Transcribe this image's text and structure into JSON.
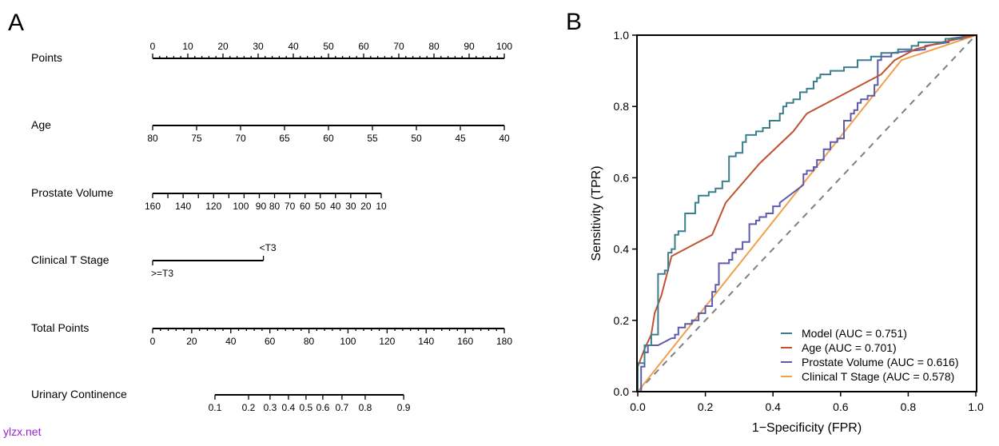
{
  "panels": {
    "a_letter": "A",
    "b_letter": "B"
  },
  "watermark": "ylzx.net",
  "chart_data": [
    {
      "type": "nomogram",
      "title": "",
      "rows": [
        {
          "label": "Points",
          "kind": "linear",
          "min": 0,
          "max": 100,
          "major_ticks": [
            0,
            10,
            20,
            30,
            40,
            50,
            60,
            70,
            80,
            90,
            100
          ],
          "minor_step": 2,
          "labels_above": true
        },
        {
          "label": "Age",
          "kind": "linear",
          "from": 80,
          "to": 40,
          "major_ticks": [
            80,
            75,
            70,
            65,
            60,
            55,
            50,
            45,
            40
          ]
        },
        {
          "label": "Prostate Volume",
          "kind": "linear",
          "from": 160,
          "to": 10,
          "points_range": [
            0,
            65
          ],
          "major_ticks": [
            160,
            150,
            140,
            130,
            120,
            110,
            100,
            90,
            80,
            70,
            60,
            50,
            40,
            30,
            20,
            10
          ],
          "tick_labels": [
            "160",
            "",
            "140",
            "",
            "120",
            "",
            "100",
            "90",
            "80",
            "70",
            "60",
            "50",
            "40",
            "30",
            "20",
            "10"
          ]
        },
        {
          "label": "Clinical T Stage",
          "kind": "categorical",
          "categories": [
            {
              "name": ">=T3",
              "points": 0
            },
            {
              "name": "<T3",
              "points": 31.5
            }
          ]
        },
        {
          "label": "Total Points",
          "kind": "linear",
          "min": 0,
          "max": 180,
          "major_ticks": [
            0,
            20,
            40,
            60,
            80,
            100,
            120,
            140,
            160,
            180
          ],
          "minor_step": 4
        },
        {
          "label": "Urinary Continence",
          "kind": "probability",
          "ticks": [
            {
              "label": "0.1",
              "total_points": 31.9
            },
            {
              "label": "0.2",
              "total_points": 49.1
            },
            {
              "label": "0.3",
              "total_points": 60.1
            },
            {
              "label": "0.4",
              "total_points": 69.5
            },
            {
              "label": "0.5",
              "total_points": 78.5
            },
            {
              "label": "0.6",
              "total_points": 87.1
            },
            {
              "label": "0.7",
              "total_points": 96.9
            },
            {
              "label": "0.8",
              "total_points": 108.8
            },
            {
              "label": "0.9",
              "total_points": 128.5
            }
          ]
        }
      ]
    },
    {
      "type": "line",
      "title": "",
      "xlabel": "1−Specificity (FPR)",
      "ylabel": "Sensitivity (TPR)",
      "xlim": [
        0,
        1
      ],
      "ylim": [
        0,
        1
      ],
      "xticks": [
        "0.0",
        "0.2",
        "0.4",
        "0.6",
        "0.8",
        "1.0"
      ],
      "yticks": [
        "0.0",
        "0.2",
        "0.4",
        "0.6",
        "0.8",
        "1.0"
      ],
      "grid": false,
      "legend_position": "bottom-right",
      "diagonal": {
        "style": "dashed",
        "color": "#7f7f7f"
      },
      "series": [
        {
          "name": "Model (AUC = 0.751)",
          "color": "#3a7e8e",
          "step": true,
          "points": [
            [
              0,
              0
            ],
            [
              0,
              0.08
            ],
            [
              0.02,
              0.08
            ],
            [
              0.02,
              0.13
            ],
            [
              0.04,
              0.13
            ],
            [
              0.04,
              0.16
            ],
            [
              0.06,
              0.16
            ],
            [
              0.06,
              0.33
            ],
            [
              0.08,
              0.33
            ],
            [
              0.08,
              0.34
            ],
            [
              0.09,
              0.34
            ],
            [
              0.09,
              0.39
            ],
            [
              0.1,
              0.39
            ],
            [
              0.1,
              0.4
            ],
            [
              0.11,
              0.4
            ],
            [
              0.11,
              0.44
            ],
            [
              0.12,
              0.44
            ],
            [
              0.12,
              0.45
            ],
            [
              0.14,
              0.45
            ],
            [
              0.14,
              0.5
            ],
            [
              0.17,
              0.5
            ],
            [
              0.17,
              0.53
            ],
            [
              0.18,
              0.53
            ],
            [
              0.18,
              0.55
            ],
            [
              0.21,
              0.55
            ],
            [
              0.21,
              0.56
            ],
            [
              0.23,
              0.56
            ],
            [
              0.23,
              0.57
            ],
            [
              0.25,
              0.57
            ],
            [
              0.25,
              0.59
            ],
            [
              0.27,
              0.59
            ],
            [
              0.27,
              0.66
            ],
            [
              0.29,
              0.66
            ],
            [
              0.29,
              0.67
            ],
            [
              0.31,
              0.67
            ],
            [
              0.31,
              0.7
            ],
            [
              0.32,
              0.7
            ],
            [
              0.32,
              0.72
            ],
            [
              0.35,
              0.72
            ],
            [
              0.35,
              0.73
            ],
            [
              0.37,
              0.73
            ],
            [
              0.37,
              0.74
            ],
            [
              0.39,
              0.74
            ],
            [
              0.39,
              0.76
            ],
            [
              0.42,
              0.76
            ],
            [
              0.42,
              0.78
            ],
            [
              0.43,
              0.78
            ],
            [
              0.43,
              0.8
            ],
            [
              0.44,
              0.8
            ],
            [
              0.44,
              0.81
            ],
            [
              0.46,
              0.81
            ],
            [
              0.46,
              0.82
            ],
            [
              0.48,
              0.82
            ],
            [
              0.48,
              0.84
            ],
            [
              0.5,
              0.84
            ],
            [
              0.5,
              0.85
            ],
            [
              0.52,
              0.85
            ],
            [
              0.52,
              0.87
            ],
            [
              0.53,
              0.87
            ],
            [
              0.53,
              0.88
            ],
            [
              0.54,
              0.88
            ],
            [
              0.54,
              0.89
            ],
            [
              0.57,
              0.89
            ],
            [
              0.57,
              0.9
            ],
            [
              0.61,
              0.9
            ],
            [
              0.61,
              0.91
            ],
            [
              0.65,
              0.91
            ],
            [
              0.65,
              0.93
            ],
            [
              0.69,
              0.93
            ],
            [
              0.69,
              0.94
            ],
            [
              0.72,
              0.94
            ],
            [
              0.72,
              0.95
            ],
            [
              0.77,
              0.95
            ],
            [
              0.77,
              0.96
            ],
            [
              0.81,
              0.96
            ],
            [
              0.81,
              0.97
            ],
            [
              0.83,
              0.97
            ],
            [
              0.83,
              0.98
            ],
            [
              0.91,
              0.98
            ],
            [
              0.91,
              0.99
            ],
            [
              0.96,
              0.99
            ],
            [
              0.96,
              1.0
            ],
            [
              1.0,
              1.0
            ]
          ]
        },
        {
          "name": "Age (AUC = 0.701)",
          "color": "#c0522f",
          "step": false,
          "points": [
            [
              0,
              0
            ],
            [
              0,
              0.07
            ],
            [
              0.02,
              0.12
            ],
            [
              0.04,
              0.16
            ],
            [
              0.05,
              0.22
            ],
            [
              0.07,
              0.27
            ],
            [
              0.1,
              0.38
            ],
            [
              0.22,
              0.44
            ],
            [
              0.26,
              0.53
            ],
            [
              0.36,
              0.64
            ],
            [
              0.46,
              0.73
            ],
            [
              0.5,
              0.78
            ],
            [
              0.56,
              0.81
            ],
            [
              0.62,
              0.84
            ],
            [
              0.68,
              0.87
            ],
            [
              0.72,
              0.89
            ],
            [
              0.76,
              0.93
            ],
            [
              0.82,
              0.96
            ],
            [
              0.9,
              0.98
            ],
            [
              1.0,
              1.0
            ]
          ]
        },
        {
          "name": "Prostate Volume (AUC = 0.616)",
          "color": "#5e5aad",
          "step": true,
          "points": [
            [
              0,
              0
            ],
            [
              0.01,
              0
            ],
            [
              0.01,
              0.07
            ],
            [
              0.02,
              0.07
            ],
            [
              0.02,
              0.11
            ],
            [
              0.03,
              0.11
            ],
            [
              0.03,
              0.13
            ],
            [
              0.06,
              0.13
            ],
            [
              0.08,
              0.14
            ],
            [
              0.1,
              0.15
            ],
            [
              0.11,
              0.15
            ],
            [
              0.11,
              0.16
            ],
            [
              0.12,
              0.16
            ],
            [
              0.12,
              0.18
            ],
            [
              0.14,
              0.18
            ],
            [
              0.14,
              0.19
            ],
            [
              0.16,
              0.19
            ],
            [
              0.16,
              0.2
            ],
            [
              0.18,
              0.2
            ],
            [
              0.18,
              0.22
            ],
            [
              0.2,
              0.22
            ],
            [
              0.2,
              0.24
            ],
            [
              0.22,
              0.24
            ],
            [
              0.22,
              0.28
            ],
            [
              0.23,
              0.28
            ],
            [
              0.23,
              0.3
            ],
            [
              0.24,
              0.3
            ],
            [
              0.24,
              0.36
            ],
            [
              0.27,
              0.36
            ],
            [
              0.27,
              0.37
            ],
            [
              0.28,
              0.37
            ],
            [
              0.28,
              0.39
            ],
            [
              0.29,
              0.39
            ],
            [
              0.29,
              0.4
            ],
            [
              0.31,
              0.4
            ],
            [
              0.31,
              0.42
            ],
            [
              0.33,
              0.42
            ],
            [
              0.33,
              0.47
            ],
            [
              0.35,
              0.47
            ],
            [
              0.35,
              0.48
            ],
            [
              0.36,
              0.48
            ],
            [
              0.36,
              0.49
            ],
            [
              0.38,
              0.49
            ],
            [
              0.38,
              0.5
            ],
            [
              0.4,
              0.5
            ],
            [
              0.4,
              0.52
            ],
            [
              0.42,
              0.52
            ],
            [
              0.42,
              0.53
            ],
            [
              0.49,
              0.58
            ],
            [
              0.49,
              0.61
            ],
            [
              0.5,
              0.61
            ],
            [
              0.5,
              0.62
            ],
            [
              0.52,
              0.62
            ],
            [
              0.52,
              0.63
            ],
            [
              0.53,
              0.63
            ],
            [
              0.53,
              0.65
            ],
            [
              0.55,
              0.65
            ],
            [
              0.55,
              0.68
            ],
            [
              0.57,
              0.68
            ],
            [
              0.57,
              0.7
            ],
            [
              0.59,
              0.7
            ],
            [
              0.59,
              0.71
            ],
            [
              0.61,
              0.71
            ],
            [
              0.61,
              0.76
            ],
            [
              0.63,
              0.76
            ],
            [
              0.63,
              0.78
            ],
            [
              0.64,
              0.78
            ],
            [
              0.64,
              0.79
            ],
            [
              0.65,
              0.79
            ],
            [
              0.65,
              0.81
            ],
            [
              0.66,
              0.81
            ],
            [
              0.66,
              0.82
            ],
            [
              0.68,
              0.82
            ],
            [
              0.68,
              0.83
            ],
            [
              0.7,
              0.83
            ],
            [
              0.7,
              0.86
            ],
            [
              0.71,
              0.86
            ],
            [
              0.71,
              0.93
            ],
            [
              0.72,
              0.93
            ],
            [
              0.72,
              0.94
            ],
            [
              0.75,
              0.94
            ],
            [
              0.75,
              0.95
            ],
            [
              0.85,
              0.96
            ],
            [
              0.85,
              0.97
            ],
            [
              0.92,
              0.98
            ],
            [
              0.92,
              0.99
            ],
            [
              1.0,
              1.0
            ]
          ]
        },
        {
          "name": "Clinical T Stage (AUC = 0.578)",
          "color": "#f0a04b",
          "step": false,
          "points": [
            [
              0,
              0
            ],
            [
              0.78,
              0.93
            ],
            [
              1.0,
              1.0
            ]
          ]
        }
      ]
    }
  ]
}
